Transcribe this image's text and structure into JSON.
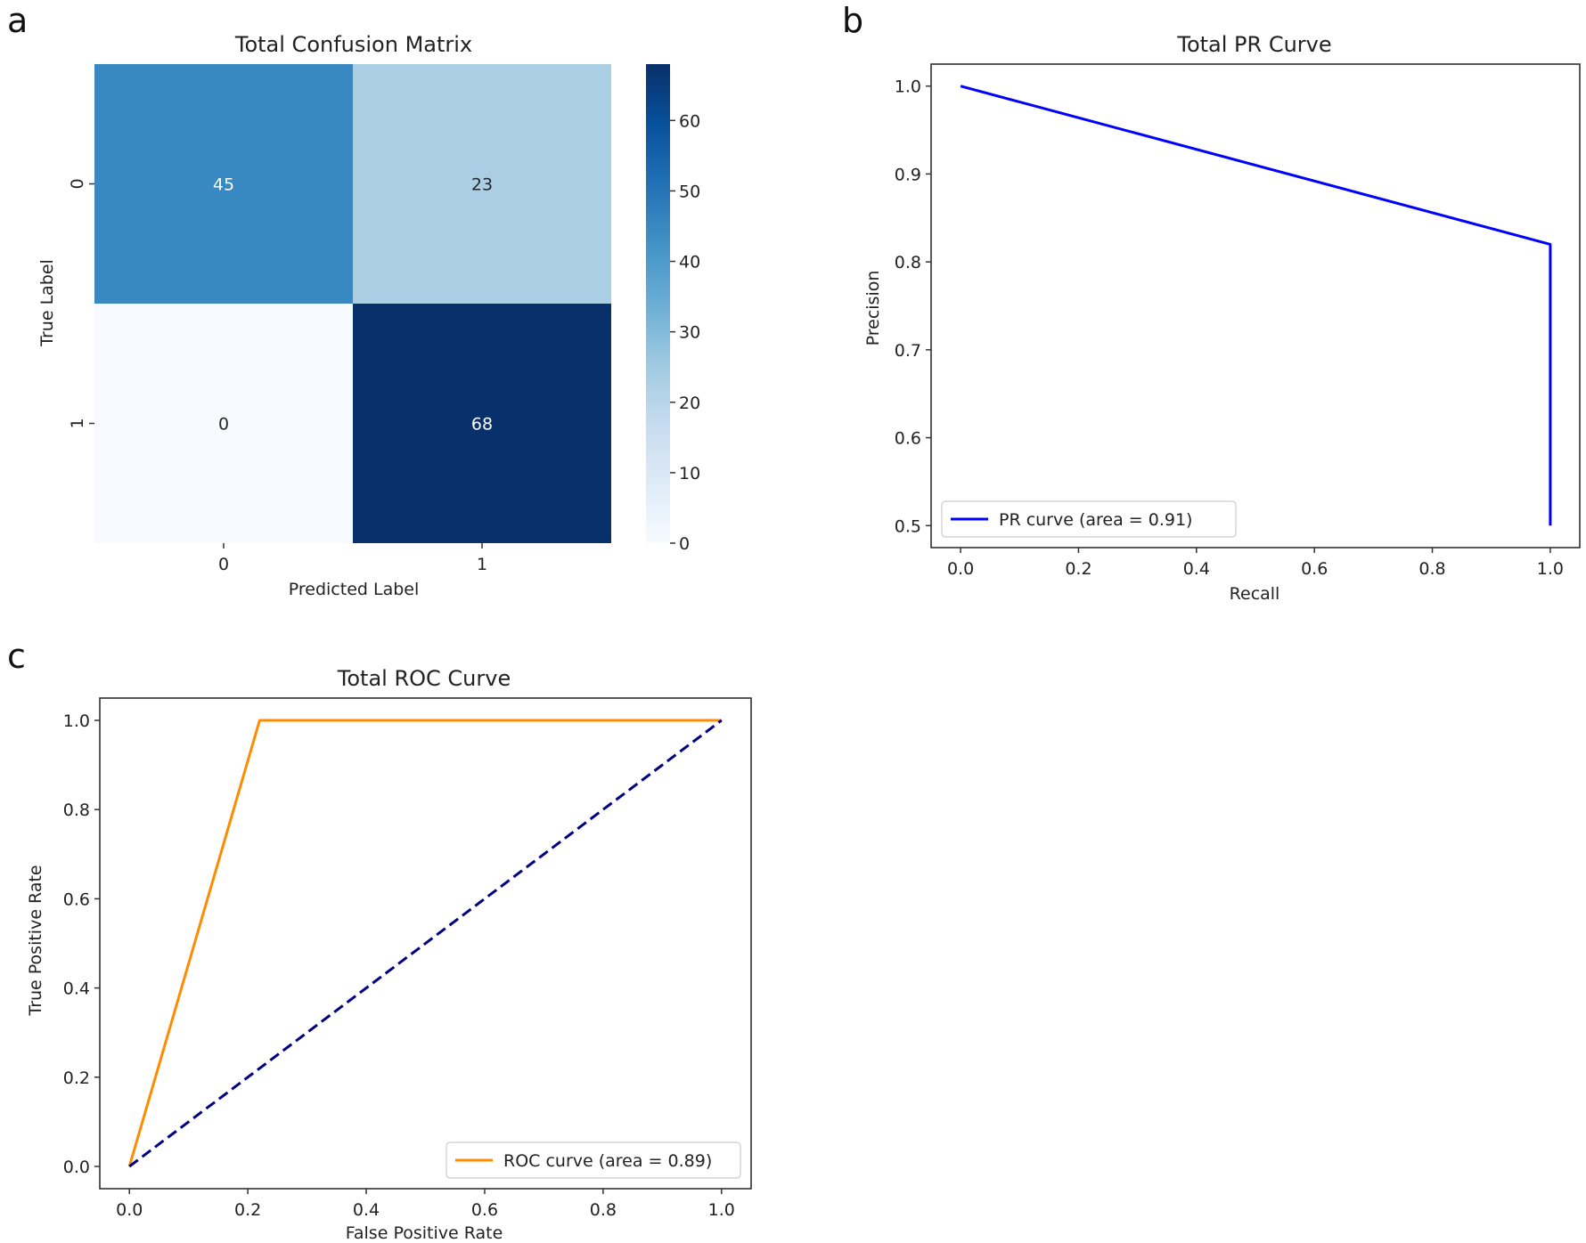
{
  "chart_data": [
    {
      "panel": "a",
      "type": "heatmap",
      "title": "Total Confusion Matrix",
      "xlabel": "Predicted Label",
      "ylabel": "True Label",
      "x_categories": [
        "0",
        "1"
      ],
      "y_categories": [
        "0",
        "1"
      ],
      "values": [
        [
          45,
          23
        ],
        [
          0,
          68
        ]
      ],
      "colorbar": {
        "min": 0,
        "max": 68,
        "ticks": [
          "0",
          "10",
          "20",
          "30",
          "40",
          "50",
          "60"
        ],
        "colormap": "Blues"
      }
    },
    {
      "panel": "b",
      "type": "line",
      "title": "Total PR Curve",
      "xlabel": "Recall",
      "ylabel": "Precision",
      "xlim": [
        -0.05,
        1.05
      ],
      "ylim": [
        0.475,
        1.025
      ],
      "xticks": [
        "0.0",
        "0.2",
        "0.4",
        "0.6",
        "0.8",
        "1.0"
      ],
      "yticks": [
        "0.5",
        "0.6",
        "0.7",
        "0.8",
        "0.9",
        "1.0"
      ],
      "series": [
        {
          "name": "PR curve (area = 0.91)",
          "color": "#0000ff",
          "dashed": false,
          "x": [
            0.0,
            1.0,
            1.0
          ],
          "y": [
            1.0,
            0.82,
            0.5
          ]
        }
      ],
      "legend": "lower-left"
    },
    {
      "panel": "c",
      "type": "line",
      "title": "Total ROC Curve",
      "xlabel": "False Positive Rate",
      "ylabel": "True Positive Rate",
      "xlim": [
        -0.05,
        1.05
      ],
      "ylim": [
        -0.05,
        1.05
      ],
      "xticks": [
        "0.0",
        "0.2",
        "0.4",
        "0.6",
        "0.8",
        "1.0"
      ],
      "yticks": [
        "0.0",
        "0.2",
        "0.4",
        "0.6",
        "0.8",
        "1.0"
      ],
      "series": [
        {
          "name": "ROC curve (area = 0.89)",
          "color": "#ff8c00",
          "dashed": false,
          "x": [
            0.0,
            0.22,
            1.0
          ],
          "y": [
            0.0,
            1.0,
            1.0
          ]
        },
        {
          "name": "",
          "color": "#000080",
          "dashed": true,
          "x": [
            0.0,
            1.0
          ],
          "y": [
            0.0,
            1.0
          ]
        }
      ],
      "legend": "lower-right"
    }
  ]
}
